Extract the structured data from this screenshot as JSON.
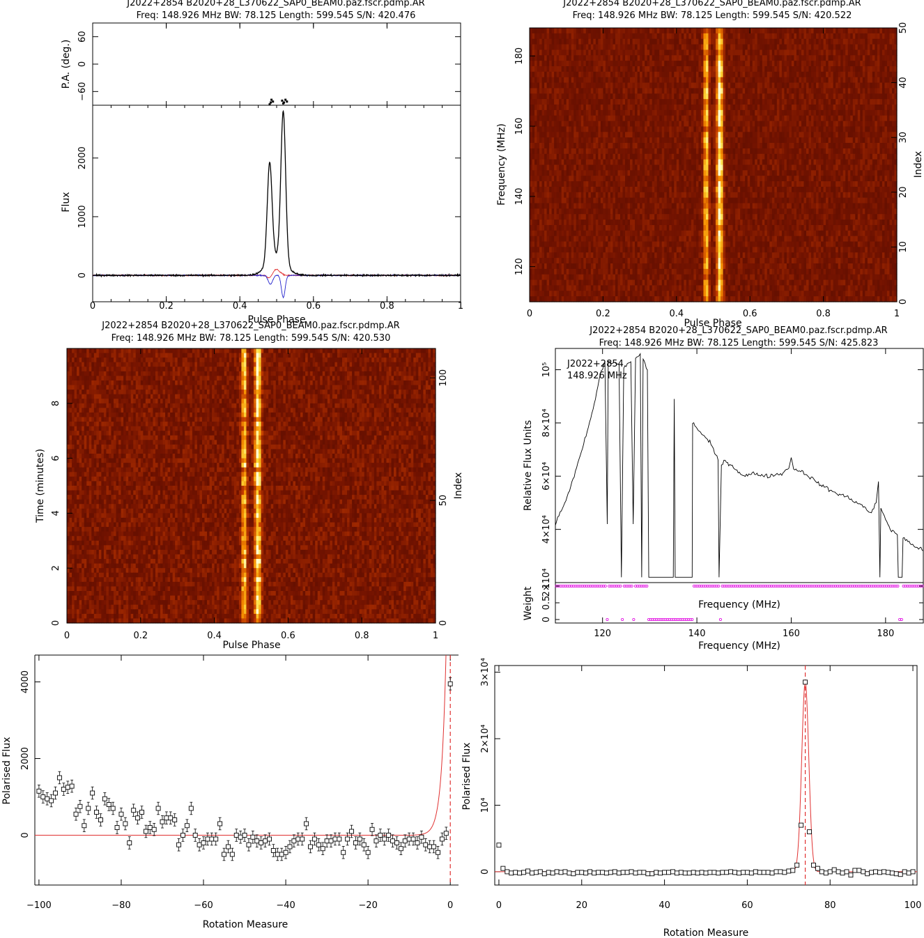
{
  "panels": {
    "p1": {
      "title1": "J2022+2854  B2020+28_L370622_SAP0_BEAM0.paz.fscr.pdmp.AR",
      "title2": "Freq: 148.926 MHz BW: 78.125 Length: 599.545 S/N: 420.476"
    },
    "p2": {
      "title1": "J2022+2854  B2020+28_L370622_SAP0_BEAM0.paz.fscr.pdmp.AR",
      "title2": "Freq: 148.926 MHz BW: 78.125 Length: 599.545 S/N: 420.522"
    },
    "p3": {
      "title1": "J2022+2854  B2020+28_L370622_SAP0_BEAM0.paz.fscr.pdmp.AR",
      "title2": "Freq: 148.926 MHz BW: 78.125 Length: 599.545 S/N: 420.530"
    },
    "p4": {
      "title1": "J2022+2854  B2020+28_L370622_SAP0_BEAM0.paz.fscr.pdmp.AR",
      "title2": "Freq: 148.926 MHz BW: 78.125 Length: 599.545 S/N: 425.823",
      "inset1": "J2022+2854",
      "inset2": "148.926 MHz"
    }
  },
  "chart_data": [
    {
      "type": "line",
      "panel": "profile",
      "ylabel_top": "P.A. (deg.)",
      "ylabel": "Flux",
      "xlabel": "Pulse Phase",
      "xlim": [
        0,
        1
      ],
      "ylim": [
        -450,
        2900
      ],
      "pa_ylim": [
        -90,
        90
      ],
      "x_ticks": [
        "0",
        "0.2",
        "0.4",
        "0.6",
        "0.8",
        "1"
      ],
      "y_ticks": [
        "0",
        "1000",
        "2000"
      ],
      "pa_ticks": [
        "60",
        "0",
        "−60"
      ],
      "peaks": [
        {
          "phase": 0.481,
          "flux": 1680
        },
        {
          "phase": 0.518,
          "flux": 2560
        }
      ],
      "series": [
        {
          "color": "#000000"
        },
        {
          "color": "#e03030"
        },
        {
          "color": "#2020cc"
        }
      ]
    },
    {
      "type": "heatmap",
      "panel": "freq-phase",
      "xlabel": "Pulse Phase",
      "ylabel": "Frequency (MHz)",
      "ylabel_right": "Index",
      "xlim": [
        0,
        1
      ],
      "ylim": [
        110,
        188
      ],
      "x_ticks": [
        "0",
        "0.2",
        "0.4",
        "0.6",
        "0.8",
        "1"
      ],
      "y_ticks": [
        "120",
        "140",
        "160",
        "180"
      ],
      "y2_ticks": [
        "0",
        "10",
        "20",
        "30",
        "40",
        "50"
      ],
      "bright_phases": [
        0.481,
        0.518
      ]
    },
    {
      "type": "heatmap",
      "panel": "time-phase",
      "xlabel": "Pulse Phase",
      "ylabel": "Time (minutes)",
      "ylabel_right": "Index",
      "xlim": [
        0,
        1
      ],
      "ylim": [
        0,
        10
      ],
      "x_ticks": [
        "0",
        "0.2",
        "0.4",
        "0.6",
        "0.8",
        "1"
      ],
      "y_ticks": [
        "0",
        "2",
        "4",
        "6",
        "8"
      ],
      "y2_ticks": [
        "0",
        "50",
        "100"
      ],
      "bright_phases": [
        0.481,
        0.518
      ]
    },
    {
      "type": "line",
      "panel": "bandpass",
      "xlabel": "Frequency (MHz)",
      "ylabel": "Relative Flux Units",
      "ylabel_bottom": "Weight",
      "xlim": [
        110,
        188
      ],
      "ylim": [
        20000,
        108000
      ],
      "x_ticks": [
        "120",
        "140",
        "160",
        "180"
      ],
      "y_ticks": [
        "2×10⁴",
        "4×10⁴",
        "6×10⁴",
        "8×10⁴",
        "10⁵"
      ],
      "weight_ticks": [
        "0",
        "0.5",
        "1"
      ],
      "line_color": "#000000",
      "weight_color": "#e000e0",
      "points": [
        [
          110,
          42000
        ],
        [
          112,
          50000
        ],
        [
          114,
          60000
        ],
        [
          116,
          72000
        ],
        [
          118,
          85000
        ],
        [
          119.5,
          98000
        ],
        [
          120.5,
          103000
        ],
        [
          121,
          42000
        ],
        [
          121.2,
          103000
        ],
        [
          123.5,
          102000
        ],
        [
          124,
          22000
        ],
        [
          124.5,
          101000
        ],
        [
          126,
          103000
        ],
        [
          126.5,
          42000
        ],
        [
          127,
          104000
        ],
        [
          128,
          106000
        ],
        [
          128.3,
          22000
        ],
        [
          128.6,
          104000
        ],
        [
          129.5,
          100000
        ],
        [
          129.8,
          22000
        ],
        [
          135,
          22000
        ],
        [
          135.2,
          89000
        ],
        [
          135.4,
          22000
        ],
        [
          139,
          22000
        ],
        [
          139.1,
          80000
        ],
        [
          141,
          76000
        ],
        [
          143,
          72000
        ],
        [
          144.5,
          66000
        ],
        [
          144.7,
          22000
        ],
        [
          145.2,
          64000
        ],
        [
          146,
          66000
        ],
        [
          148,
          63000
        ],
        [
          150,
          60000
        ],
        [
          152,
          61000
        ],
        [
          155,
          60000
        ],
        [
          158,
          61000
        ],
        [
          159.5,
          63000
        ],
        [
          160,
          67000
        ],
        [
          160.5,
          63000
        ],
        [
          163,
          61000
        ],
        [
          166,
          57000
        ],
        [
          169,
          54000
        ],
        [
          172,
          52000
        ],
        [
          175,
          49000
        ],
        [
          177,
          46000
        ],
        [
          178,
          50000
        ],
        [
          178.5,
          58000
        ],
        [
          178.8,
          22000
        ],
        [
          179,
          48000
        ],
        [
          181,
          40000
        ],
        [
          182.5,
          38000
        ],
        [
          182.7,
          22000
        ],
        [
          183.5,
          22000
        ],
        [
          183.7,
          37000
        ],
        [
          185,
          35000
        ],
        [
          188,
          32000
        ]
      ],
      "weights": [
        [
          110,
          1
        ],
        [
          120.5,
          1
        ],
        [
          121,
          0
        ],
        [
          121.2,
          1
        ],
        [
          123.5,
          1
        ],
        [
          124,
          0
        ],
        [
          124.5,
          1
        ],
        [
          126,
          1
        ],
        [
          126.5,
          0
        ],
        [
          127,
          1
        ],
        [
          128,
          1
        ],
        [
          128.3,
          0
        ],
        [
          128.6,
          1
        ],
        [
          129.5,
          1
        ],
        [
          129.8,
          0
        ],
        [
          135,
          0
        ],
        [
          135.2,
          1
        ],
        [
          135.4,
          0
        ],
        [
          139,
          0
        ],
        [
          139.1,
          1
        ],
        [
          144.5,
          1
        ],
        [
          144.7,
          0
        ],
        [
          145.2,
          1
        ],
        [
          178.5,
          1
        ],
        [
          178.8,
          0
        ],
        [
          179,
          1
        ],
        [
          182.5,
          1
        ],
        [
          182.7,
          0
        ],
        [
          183.5,
          0
        ],
        [
          183.7,
          1
        ],
        [
          188,
          1
        ]
      ]
    },
    {
      "type": "scatter",
      "panel": "rm-negative",
      "xlabel": "Rotation Measure",
      "ylabel": "Polarised Flux",
      "xlim": [
        -101,
        2
      ],
      "ylim": [
        -1300,
        4700
      ],
      "x_ticks": [
        "−100",
        "−80",
        "−60",
        "−40",
        "−20",
        "0"
      ],
      "y_ticks": [
        "0",
        "2000",
        "4000"
      ],
      "marker_rm": 0,
      "fit_color": "#e03030",
      "points": [
        [
          -100,
          1150
        ],
        [
          -99,
          1000
        ],
        [
          -98,
          950
        ],
        [
          -97,
          900
        ],
        [
          -96,
          1100
        ],
        [
          -95,
          1500
        ],
        [
          -94,
          1200
        ],
        [
          -93,
          1250
        ],
        [
          -92,
          1280
        ],
        [
          -91,
          550
        ],
        [
          -90,
          750
        ],
        [
          -89,
          250
        ],
        [
          -88,
          700
        ],
        [
          -87,
          1100
        ],
        [
          -86,
          600
        ],
        [
          -85,
          400
        ],
        [
          -84,
          950
        ],
        [
          -83,
          800
        ],
        [
          -82,
          700
        ],
        [
          -81,
          200
        ],
        [
          -80,
          550
        ],
        [
          -79,
          300
        ],
        [
          -78,
          -200
        ],
        [
          -77,
          650
        ],
        [
          -76,
          450
        ],
        [
          -75,
          600
        ],
        [
          -74,
          100
        ],
        [
          -73,
          200
        ],
        [
          -72,
          150
        ],
        [
          -71,
          700
        ],
        [
          -70,
          350
        ],
        [
          -69,
          450
        ],
        [
          -68,
          450
        ],
        [
          -67,
          400
        ],
        [
          -66,
          -250
        ],
        [
          -65,
          0
        ],
        [
          -64,
          250
        ],
        [
          -63,
          700
        ],
        [
          -62,
          0
        ],
        [
          -61,
          -250
        ],
        [
          -60,
          -200
        ],
        [
          -59,
          -100
        ],
        [
          -58,
          -100
        ],
        [
          -57,
          -100
        ],
        [
          -56,
          300
        ],
        [
          -55,
          -500
        ],
        [
          -54,
          -300
        ],
        [
          -53,
          -500
        ],
        [
          -52,
          0
        ],
        [
          -51,
          -50
        ],
        [
          -50,
          0
        ],
        [
          -49,
          -250
        ],
        [
          -48,
          -50
        ],
        [
          -47,
          -150
        ],
        [
          -46,
          -200
        ],
        [
          -45,
          -150
        ],
        [
          -44,
          -100
        ],
        [
          -43,
          -400
        ],
        [
          -42,
          -500
        ],
        [
          -41,
          -500
        ],
        [
          -40,
          -450
        ],
        [
          -39,
          -300
        ],
        [
          -38,
          -150
        ],
        [
          -37,
          -100
        ],
        [
          -36,
          -100
        ],
        [
          -35,
          300
        ],
        [
          -34,
          -300
        ],
        [
          -33,
          -100
        ],
        [
          -32,
          -250
        ],
        [
          -31,
          -350
        ],
        [
          -30,
          -150
        ],
        [
          -29,
          -150
        ],
        [
          -28,
          -100
        ],
        [
          -27,
          -100
        ],
        [
          -26,
          -450
        ],
        [
          -25,
          -100
        ],
        [
          -24,
          100
        ],
        [
          -23,
          -200
        ],
        [
          -22,
          -100
        ],
        [
          -21,
          -250
        ],
        [
          -20,
          -450
        ],
        [
          -19,
          150
        ],
        [
          -18,
          -150
        ],
        [
          -17,
          0
        ],
        [
          -16,
          -100
        ],
        [
          -15,
          0
        ],
        [
          -14,
          -150
        ],
        [
          -13,
          -200
        ],
        [
          -12,
          -350
        ],
        [
          -11,
          -150
        ],
        [
          -10,
          -100
        ],
        [
          -9,
          -100
        ],
        [
          -8,
          -200
        ],
        [
          -7,
          -50
        ],
        [
          -6,
          -250
        ],
        [
          -5,
          -300
        ],
        [
          -4,
          -300
        ],
        [
          -3,
          -450
        ],
        [
          -2,
          -100
        ],
        [
          -1,
          50
        ],
        [
          0,
          3950
        ]
      ]
    },
    {
      "type": "scatter",
      "panel": "rm-positive",
      "xlabel": "Rotation Measure",
      "ylabel": "Polarised Flux",
      "xlim": [
        -1,
        101
      ],
      "ylim": [
        -2000,
        31000
      ],
      "x_ticks": [
        "0",
        "20",
        "40",
        "60",
        "80",
        "100"
      ],
      "y_ticks": [
        "0",
        "10⁴",
        "2×10⁴",
        "3×10⁴"
      ],
      "marker_rm": 74,
      "fit_color": "#e03030",
      "points": [
        [
          0,
          4000
        ],
        [
          1,
          500
        ],
        [
          2,
          0
        ],
        [
          3,
          -200
        ],
        [
          4,
          -100
        ],
        [
          5,
          -200
        ],
        [
          6,
          -100
        ],
        [
          7,
          100
        ],
        [
          8,
          -200
        ],
        [
          9,
          -100
        ],
        [
          10,
          0
        ],
        [
          11,
          -300
        ],
        [
          12,
          -100
        ],
        [
          13,
          -200
        ],
        [
          14,
          0
        ],
        [
          15,
          -100
        ],
        [
          16,
          0
        ],
        [
          17,
          -200
        ],
        [
          18,
          -300
        ],
        [
          19,
          -100
        ],
        [
          20,
          -100
        ],
        [
          21,
          -200
        ],
        [
          22,
          0
        ],
        [
          23,
          -200
        ],
        [
          24,
          -100
        ],
        [
          25,
          -100
        ],
        [
          26,
          -200
        ],
        [
          27,
          -100
        ],
        [
          28,
          0
        ],
        [
          29,
          -200
        ],
        [
          30,
          -100
        ],
        [
          31,
          -100
        ],
        [
          32,
          0
        ],
        [
          33,
          -200
        ],
        [
          34,
          -100
        ],
        [
          35,
          -100
        ],
        [
          36,
          -300
        ],
        [
          37,
          -300
        ],
        [
          38,
          -100
        ],
        [
          39,
          -200
        ],
        [
          40,
          -100
        ],
        [
          41,
          -100
        ],
        [
          42,
          0
        ],
        [
          43,
          -200
        ],
        [
          44,
          -100
        ],
        [
          45,
          -200
        ],
        [
          46,
          -200
        ],
        [
          47,
          -100
        ],
        [
          48,
          -200
        ],
        [
          49,
          -100
        ],
        [
          50,
          -200
        ],
        [
          51,
          -100
        ],
        [
          52,
          -100
        ],
        [
          53,
          -200
        ],
        [
          54,
          -100
        ],
        [
          55,
          -100
        ],
        [
          56,
          0
        ],
        [
          57,
          -100
        ],
        [
          58,
          -200
        ],
        [
          59,
          -100
        ],
        [
          60,
          -100
        ],
        [
          61,
          -200
        ],
        [
          62,
          0
        ],
        [
          63,
          -100
        ],
        [
          64,
          -100
        ],
        [
          65,
          -100
        ],
        [
          66,
          -200
        ],
        [
          67,
          0
        ],
        [
          68,
          0
        ],
        [
          69,
          -100
        ],
        [
          70,
          100
        ],
        [
          71,
          200
        ],
        [
          72,
          1000
        ],
        [
          73,
          7000
        ],
        [
          74,
          28500
        ],
        [
          75,
          6000
        ],
        [
          76,
          1000
        ],
        [
          77,
          500
        ],
        [
          78,
          0
        ],
        [
          79,
          -200
        ],
        [
          80,
          0
        ],
        [
          81,
          300
        ],
        [
          82,
          0
        ],
        [
          83,
          -200
        ],
        [
          84,
          0
        ],
        [
          85,
          -500
        ],
        [
          86,
          200
        ],
        [
          87,
          200
        ],
        [
          88,
          0
        ],
        [
          89,
          -300
        ],
        [
          90,
          -100
        ],
        [
          91,
          0
        ],
        [
          92,
          -100
        ],
        [
          93,
          0
        ],
        [
          94,
          -100
        ],
        [
          95,
          -200
        ],
        [
          96,
          -300
        ],
        [
          97,
          -400
        ],
        [
          98,
          0
        ],
        [
          99,
          -200
        ],
        [
          100,
          0
        ]
      ]
    }
  ]
}
